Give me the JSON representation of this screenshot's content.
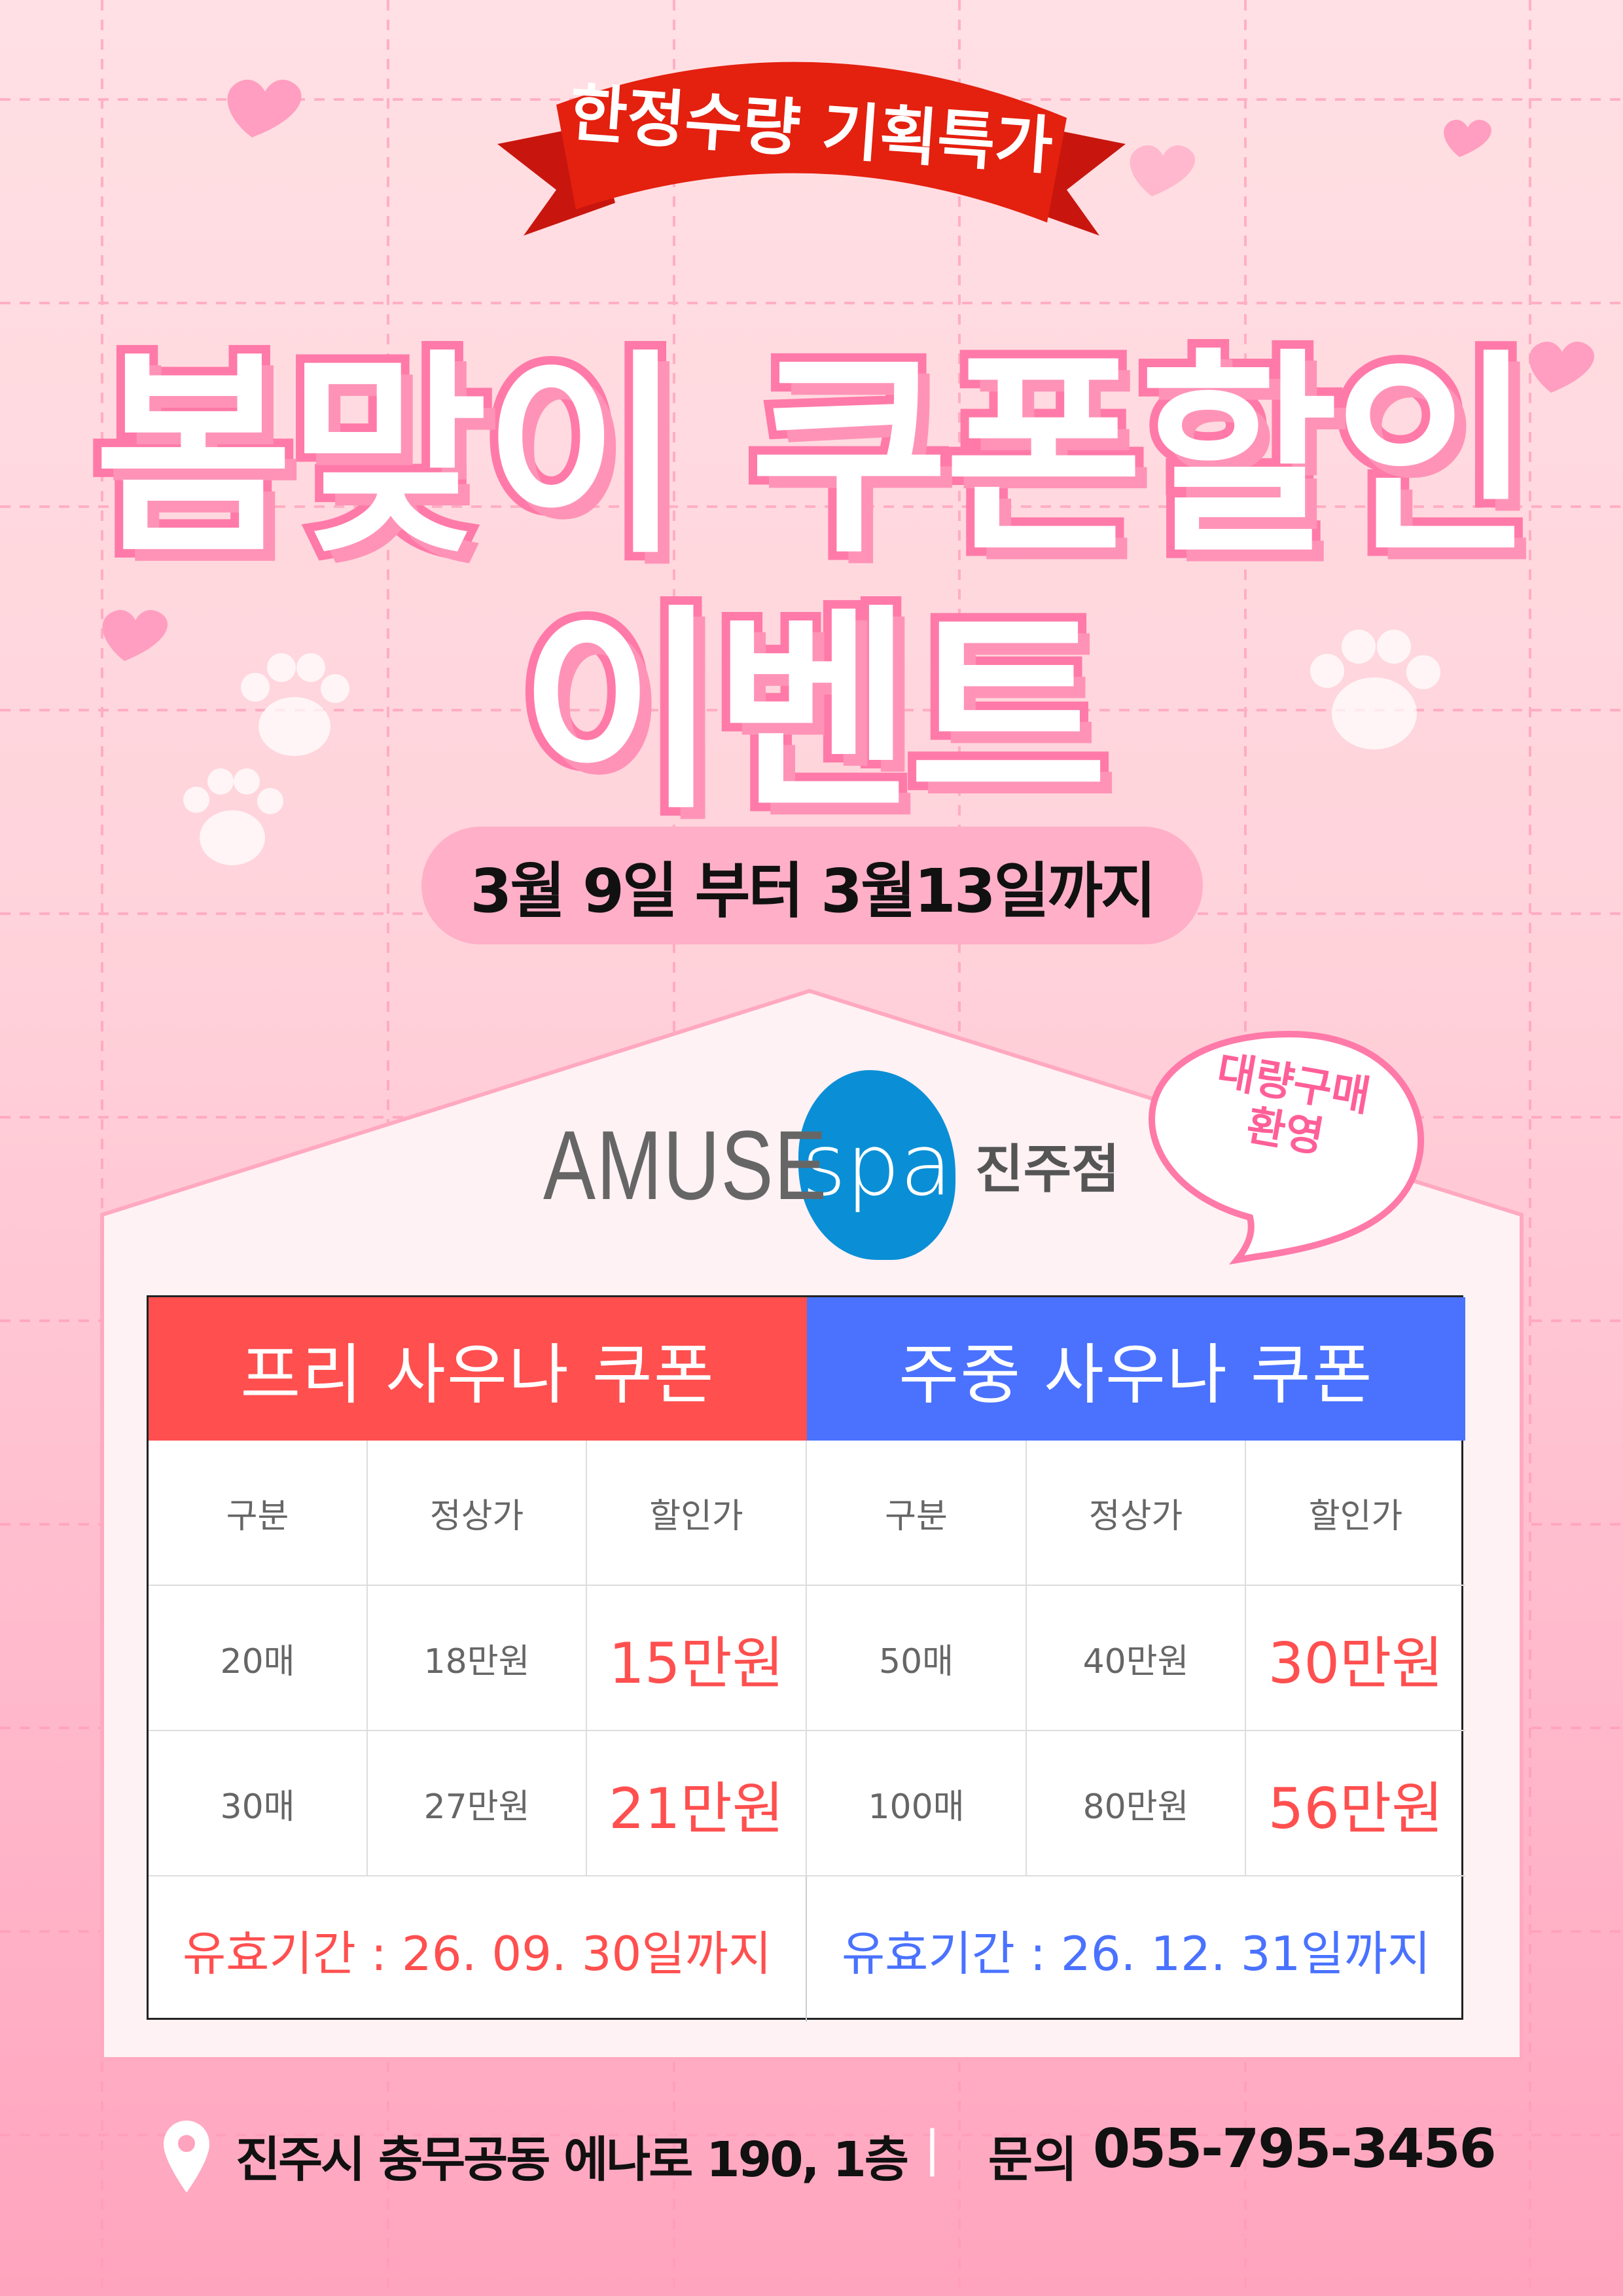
{
  "banner": {
    "ribbon_text": "한정수량 기획특가",
    "title_line1": "봄맞이 쿠폰할인",
    "title_line2": "이벤트",
    "date_range": "3월 9일 부터 3월13일까지"
  },
  "brand": {
    "name_part1": "AMUSE",
    "name_part2": "spa",
    "branch": "진주점",
    "bubble_line1": "대량구매",
    "bubble_line2": "환영"
  },
  "colors": {
    "red": "#ff4f4f",
    "blue": "#4a72ff",
    "pink": "#ff7aa8"
  },
  "coupons": [
    {
      "title": "프리 사우나 쿠폰",
      "headers": [
        "구분",
        "정상가",
        "할인가"
      ],
      "rows": [
        [
          "20매",
          "18만원",
          "15만원"
        ],
        [
          "30매",
          "27만원",
          "21만원"
        ]
      ],
      "validity": "유효기간 : 26. 09. 30일까지"
    },
    {
      "title": "주중 사우나 쿠폰",
      "headers": [
        "구분",
        "정상가",
        "할인가"
      ],
      "rows": [
        [
          "50매",
          "40만원",
          "30만원"
        ],
        [
          "100매",
          "80만원",
          "56만원"
        ]
      ],
      "validity": "유효기간 : 26. 12. 31일까지"
    }
  ],
  "footer": {
    "address": "진주시 충무공동 에나로 190, 1층",
    "separator": "|",
    "contact_label": "문의",
    "phone": "055-795-3456"
  }
}
